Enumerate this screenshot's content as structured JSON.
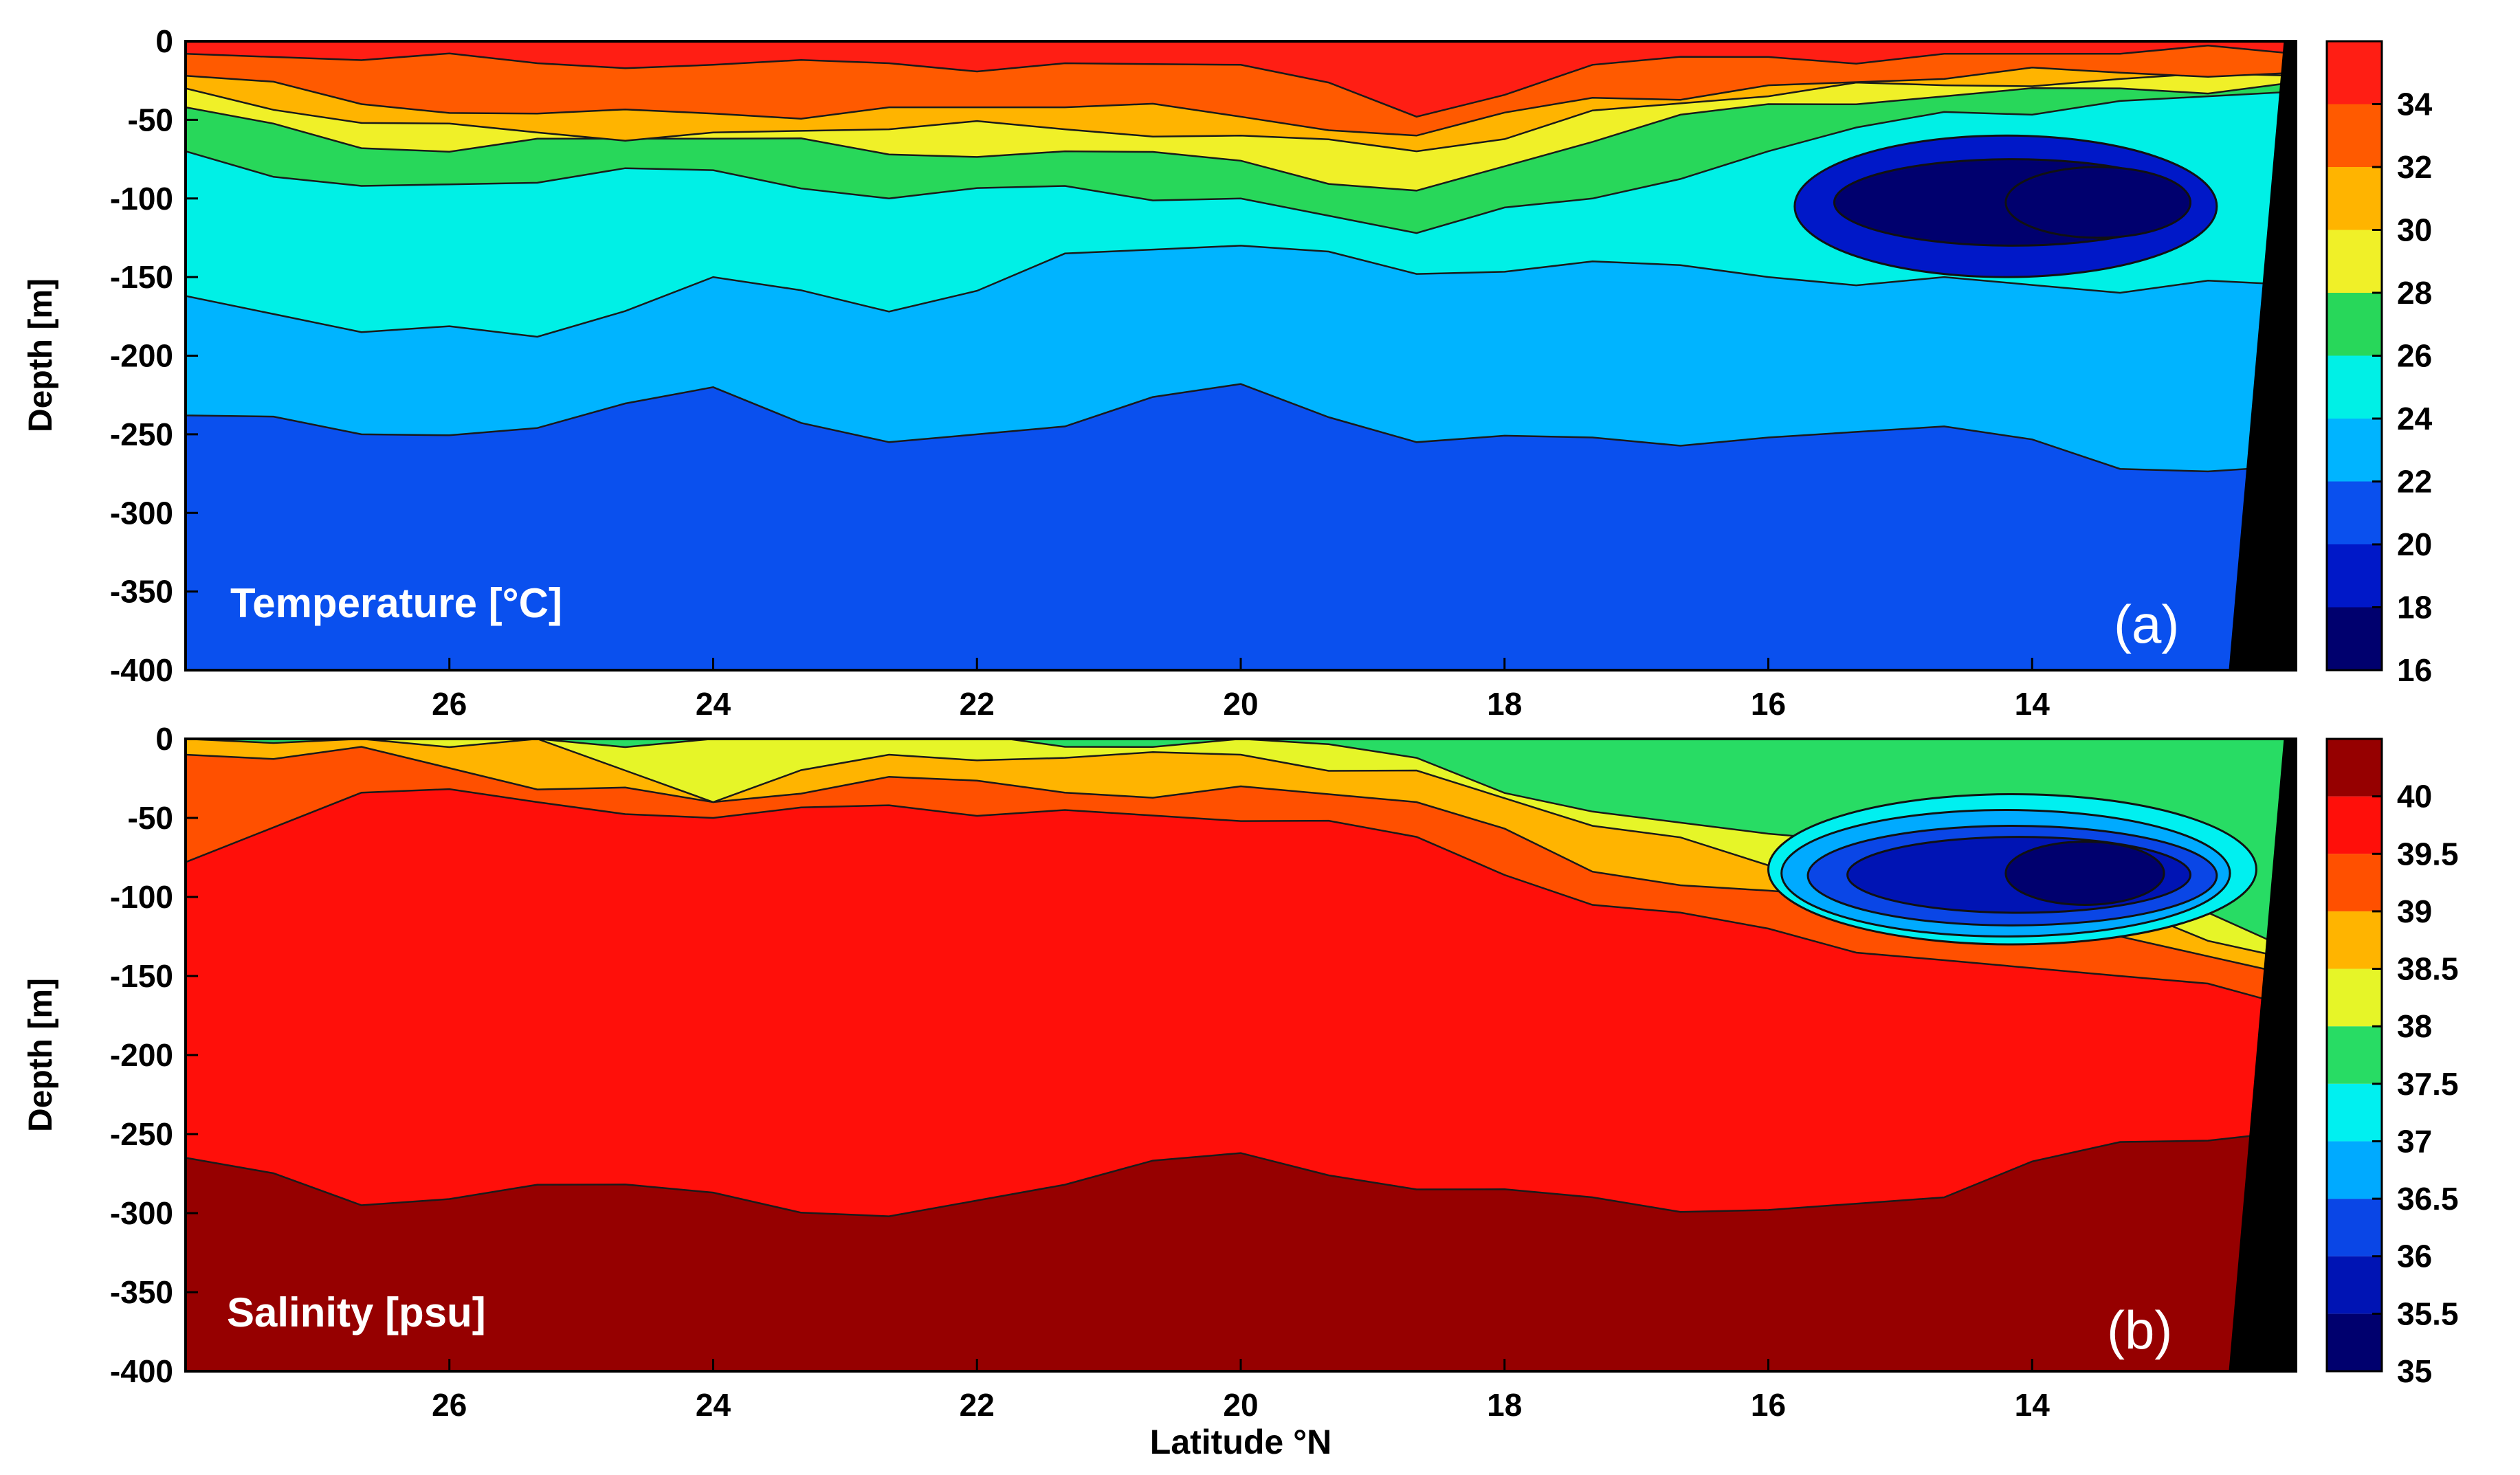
{
  "chart_data": [
    {
      "type": "heatmap",
      "title": "Temperature [°C]",
      "panel_label": "(a)",
      "ylabel": "Depth [m]",
      "xlabel": "",
      "xlim": [
        28,
        12
      ],
      "ylim": [
        -400,
        0
      ],
      "x_ticks": [
        26,
        24,
        22,
        20,
        18,
        16,
        14
      ],
      "y_ticks": [
        0,
        -50,
        -100,
        -150,
        -200,
        -250,
        -300,
        -350,
        -400
      ],
      "colorbar": {
        "levels": [
          16,
          18,
          20,
          22,
          24,
          26,
          28,
          30,
          32,
          34,
          36
        ],
        "tick_labels": [
          16,
          18,
          20,
          22,
          24,
          26,
          28,
          30,
          32,
          34
        ],
        "colors": [
          "#00006e",
          "#0018c8",
          "#0a50ee",
          "#00b4ff",
          "#00f0e6",
          "#28d75a",
          "#f0f028",
          "#ffb400",
          "#ff5a00",
          "#ff1e14"
        ]
      },
      "contours": [
        {
          "level": 34,
          "depths": [
            -8,
            -12,
            -14,
            -15,
            -14,
            -14,
            -15,
            -48,
            -15,
            -10,
            -8,
            -8,
            -8
          ]
        },
        {
          "level": 32,
          "depths": [
            -22,
            -40,
            -46,
            -46,
            -42,
            -42,
            -48,
            -60,
            -36,
            -28,
            -24,
            -20,
            -20
          ]
        },
        {
          "level": 30,
          "depths": [
            -30,
            -52,
            -58,
            -58,
            -56,
            -56,
            -60,
            -70,
            -44,
            -35,
            -28,
            -24,
            -22
          ]
        },
        {
          "level": 28,
          "depths": [
            -42,
            -68,
            -62,
            -62,
            -72,
            -70,
            -76,
            -95,
            -64,
            -40,
            -35,
            -30,
            -26
          ]
        },
        {
          "level": 26,
          "depths": [
            -70,
            -92,
            -90,
            -82,
            -100,
            -92,
            -100,
            -122,
            -100,
            -70,
            -45,
            -38,
            -32
          ]
        },
        {
          "level": 24,
          "depths": [
            -162,
            -185,
            -188,
            -150,
            -172,
            -135,
            -130,
            -148,
            -140,
            -150,
            -150,
            -160,
            -155
          ]
        },
        {
          "level": 22,
          "depths": [
            -238,
            -250,
            -246,
            -220,
            -255,
            -245,
            -218,
            -255,
            -252,
            -252,
            -245,
            -272,
            -270
          ]
        }
      ],
      "cold_core_contours": [
        {
          "level": 20,
          "x_range": [
            15.8,
            12.6
          ],
          "depth_range": [
            -60,
            -150
          ]
        },
        {
          "level": 18,
          "x_range": [
            15.5,
            12.8
          ],
          "depth_range": [
            -75,
            -130
          ]
        },
        {
          "level": 16,
          "x_range": [
            14.2,
            12.8
          ],
          "depth_range": [
            -80,
            -125
          ]
        }
      ]
    },
    {
      "type": "heatmap",
      "title": "Salinity [psu]",
      "panel_label": "(b)",
      "ylabel": "Depth [m]",
      "xlabel": "Latitude °N",
      "xlim": [
        28,
        12
      ],
      "ylim": [
        -400,
        0
      ],
      "x_ticks": [
        26,
        24,
        22,
        20,
        18,
        16,
        14
      ],
      "y_ticks": [
        0,
        -50,
        -100,
        -150,
        -200,
        -250,
        -300,
        -350,
        -400
      ],
      "colorbar": {
        "levels": [
          35,
          35.5,
          36,
          36.5,
          37,
          37.5,
          38,
          38.5,
          39,
          39.5,
          40,
          40.5
        ],
        "tick_labels": [
          35,
          35.5,
          36,
          36.5,
          37,
          37.5,
          38,
          38.5,
          39,
          39.5,
          40
        ],
        "colors": [
          "#00006e",
          "#0014b4",
          "#0a46e6",
          "#00aaff",
          "#00f0f0",
          "#28dc64",
          "#e6f528",
          "#ffb400",
          "#ff5000",
          "#ff0f0a",
          "#960000"
        ]
      },
      "contours": [
        {
          "level": 39.5,
          "depths": [
            -78,
            -34,
            -40,
            -50,
            -42,
            -45,
            -52,
            -62,
            -105,
            -120,
            -140,
            -150,
            -170
          ]
        },
        {
          "level": 39,
          "depths": [
            -10,
            -5,
            -32,
            -40,
            -24,
            -34,
            -30,
            -40,
            -84,
            -96,
            -110,
            -125,
            -150
          ]
        },
        {
          "level": 38.5,
          "depths": [
            0,
            0,
            0,
            -40,
            -10,
            -12,
            -10,
            -20,
            -55,
            -80,
            -90,
            -105,
            -140
          ]
        },
        {
          "level": 38,
          "depths": [
            0,
            0,
            0,
            0,
            0,
            -5,
            0,
            -12,
            -46,
            -60,
            -80,
            -90,
            -135
          ]
        },
        {
          "level": 40,
          "depths": [
            -265,
            -295,
            -282,
            -287,
            -302,
            -282,
            -262,
            -285,
            -290,
            -298,
            -290,
            -255,
            -248
          ]
        }
      ],
      "cold_core_contours": [
        {
          "level": 37.5,
          "x_range": [
            16.0,
            12.3
          ],
          "depth_range": [
            -35,
            -130
          ]
        },
        {
          "level": 37,
          "x_range": [
            15.9,
            12.5
          ],
          "depth_range": [
            -45,
            -125
          ]
        },
        {
          "level": 36.5,
          "x_range": [
            15.7,
            12.6
          ],
          "depth_range": [
            -55,
            -118
          ]
        },
        {
          "level": 36,
          "x_range": [
            15.4,
            12.8
          ],
          "depth_range": [
            -62,
            -110
          ]
        },
        {
          "level": 35.5,
          "x_range": [
            14.2,
            13.0
          ],
          "depth_range": [
            -65,
            -105
          ]
        }
      ]
    }
  ]
}
